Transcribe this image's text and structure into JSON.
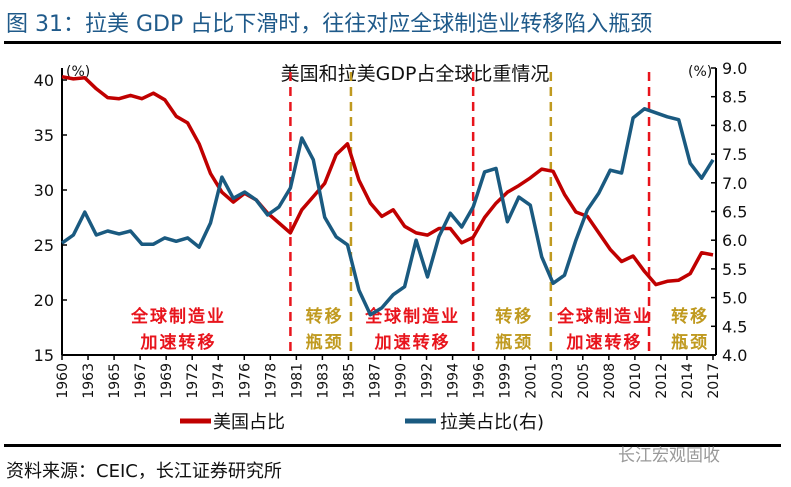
{
  "figure_title": "图 31：拉美 GDP 占比下滑时，往往对应全球制造业转移陷入瓶颈",
  "source": "资料来源：CEIC，长江证券研究所",
  "watermark": "长江宏观固收",
  "chart_data": {
    "type": "line",
    "title": "美国和拉美GDP占全球比重情况",
    "left_unit": "(%)",
    "right_unit": "(%)",
    "x": [
      1960,
      1961,
      1962,
      1963,
      1964,
      1965,
      1966,
      1967,
      1968,
      1969,
      1970,
      1971,
      1972,
      1973,
      1974,
      1975,
      1976,
      1977,
      1978,
      1979,
      1980,
      1981,
      1982,
      1983,
      1984,
      1985,
      1986,
      1987,
      1988,
      1989,
      1990,
      1991,
      1992,
      1993,
      1994,
      1995,
      1996,
      1997,
      1998,
      1999,
      2000,
      2001,
      2002,
      2003,
      2004,
      2005,
      2006,
      2007,
      2008,
      2009,
      2010,
      2011,
      2012,
      2013,
      2014,
      2015,
      2016,
      2017
    ],
    "x_tick_labels": [
      "1960",
      "1963",
      "1965",
      "1967",
      "1969",
      "1972",
      "1974",
      "1976",
      "1978",
      "1981",
      "1983",
      "1985",
      "1987",
      "1990",
      "1992",
      "1994",
      "1996",
      "1999",
      "2001",
      "2003",
      "2005",
      "2008",
      "2010",
      "2012",
      "2014",
      "2017"
    ],
    "y_left": {
      "ylim": [
        15,
        40
      ],
      "ticks": [
        "15",
        "20",
        "25",
        "30",
        "35",
        "40"
      ]
    },
    "y_right": {
      "ylim": [
        4.0,
        9.0
      ],
      "ticks": [
        "4.0",
        "4.5",
        "5.0",
        "5.5",
        "6.0",
        "6.5",
        "7.0",
        "7.5",
        "8.0",
        "8.5",
        "9.0"
      ]
    },
    "series": [
      {
        "name": "美国占比",
        "axis": "left",
        "color": "#c00000",
        "values": [
          40.3,
          40.1,
          40.2,
          39.2,
          38.4,
          38.3,
          38.6,
          38.3,
          38.8,
          38.2,
          36.7,
          36.1,
          34.2,
          31.5,
          29.8,
          28.9,
          29.7,
          29.1,
          27.9,
          27.0,
          26.1,
          28.2,
          29.4,
          30.6,
          33.2,
          34.2,
          30.9,
          28.8,
          27.6,
          28.2,
          26.7,
          26.1,
          25.9,
          26.5,
          26.5,
          25.2,
          25.7,
          27.5,
          28.8,
          29.8,
          30.4,
          31.1,
          31.9,
          31.7,
          29.6,
          28.0,
          27.6,
          26.1,
          24.6,
          23.5,
          24.0,
          22.6,
          21.4,
          21.7,
          21.8,
          22.4,
          24.3,
          24.1
        ]
      },
      {
        "name": "拉美占比(右)",
        "axis": "right",
        "color": "#1a5a80",
        "values": [
          5.95,
          6.09,
          6.49,
          6.09,
          6.16,
          6.11,
          6.16,
          5.93,
          5.93,
          6.04,
          5.98,
          6.04,
          5.88,
          6.3,
          7.1,
          6.73,
          6.84,
          6.7,
          6.44,
          6.58,
          6.91,
          7.78,
          7.4,
          6.4,
          6.06,
          5.92,
          5.13,
          4.7,
          4.82,
          5.05,
          5.19,
          6.0,
          5.36,
          6.06,
          6.47,
          6.23,
          6.58,
          7.19,
          7.25,
          6.32,
          6.75,
          6.61,
          5.71,
          5.25,
          5.39,
          6.0,
          6.53,
          6.82,
          7.22,
          7.17,
          8.13,
          8.29,
          8.22,
          8.15,
          8.1,
          7.34,
          7.08,
          7.4
        ]
      }
    ],
    "vertical_markers": [
      {
        "year": 1980,
        "color": "#e8141c"
      },
      {
        "year": 1985.3,
        "color": "#c09a20"
      },
      {
        "year": 1996,
        "color": "#e8141c"
      },
      {
        "year": 2002.8,
        "color": "#c09a20"
      },
      {
        "year": 2011.4,
        "color": "#e8141c"
      }
    ],
    "annotations": [
      {
        "lines": [
          "全球制造业",
          "加速转移"
        ],
        "color": "#e8141c",
        "year_center": 1970.2
      },
      {
        "lines": [
          "转移",
          "瓶颈"
        ],
        "color": "#c09a20",
        "year_center": 1983
      },
      {
        "lines": [
          "全球制造业",
          "加速转移"
        ],
        "color": "#e8141c",
        "year_center": 1990.7
      },
      {
        "lines": [
          "转移",
          "瓶颈"
        ],
        "color": "#c09a20",
        "year_center": 1999.6
      },
      {
        "lines": [
          "全球制造业",
          "加速转移"
        ],
        "color": "#e8141c",
        "year_center": 2007.5
      },
      {
        "lines": [
          "转移",
          "瓶颈"
        ],
        "color": "#c09a20",
        "year_center": 2015
      }
    ],
    "legend_position": "bottom",
    "grid": false
  }
}
